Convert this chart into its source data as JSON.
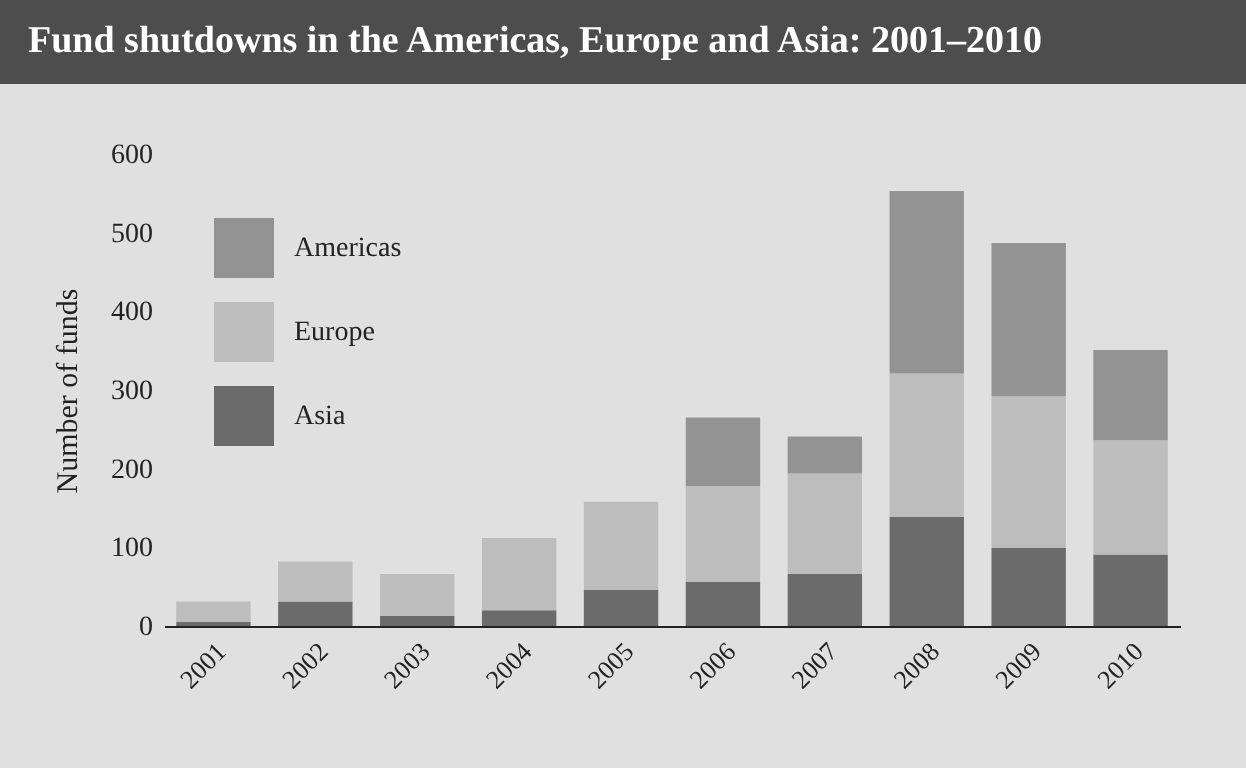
{
  "chart_data": {
    "type": "bar",
    "title": "Fund shutdowns in the Americas, Europe and Asia: 2001–2010",
    "ylabel": "Number of funds",
    "categories": [
      "2001",
      "2002",
      "2003",
      "2004",
      "2005",
      "2006",
      "2007",
      "2008",
      "2009",
      "2010"
    ],
    "stacked": true,
    "legend": "top left",
    "ylim": [
      0,
      600
    ],
    "yticks": [
      0,
      100,
      200,
      300,
      400,
      500,
      600
    ],
    "series": [
      {
        "name": "Asia",
        "color": "#6b6b6b",
        "values": [
          5,
          31,
          13,
          20,
          46,
          56,
          66,
          139,
          99,
          91
        ]
      },
      {
        "name": "Europe",
        "color": "#bdbdbd",
        "values": [
          26,
          51,
          53,
          92,
          112,
          122,
          128,
          182,
          193,
          145
        ]
      },
      {
        "name": "Americas",
        "color": "#939393",
        "values": [
          null,
          null,
          null,
          null,
          null,
          87,
          47,
          232,
          195,
          115
        ]
      }
    ]
  }
}
